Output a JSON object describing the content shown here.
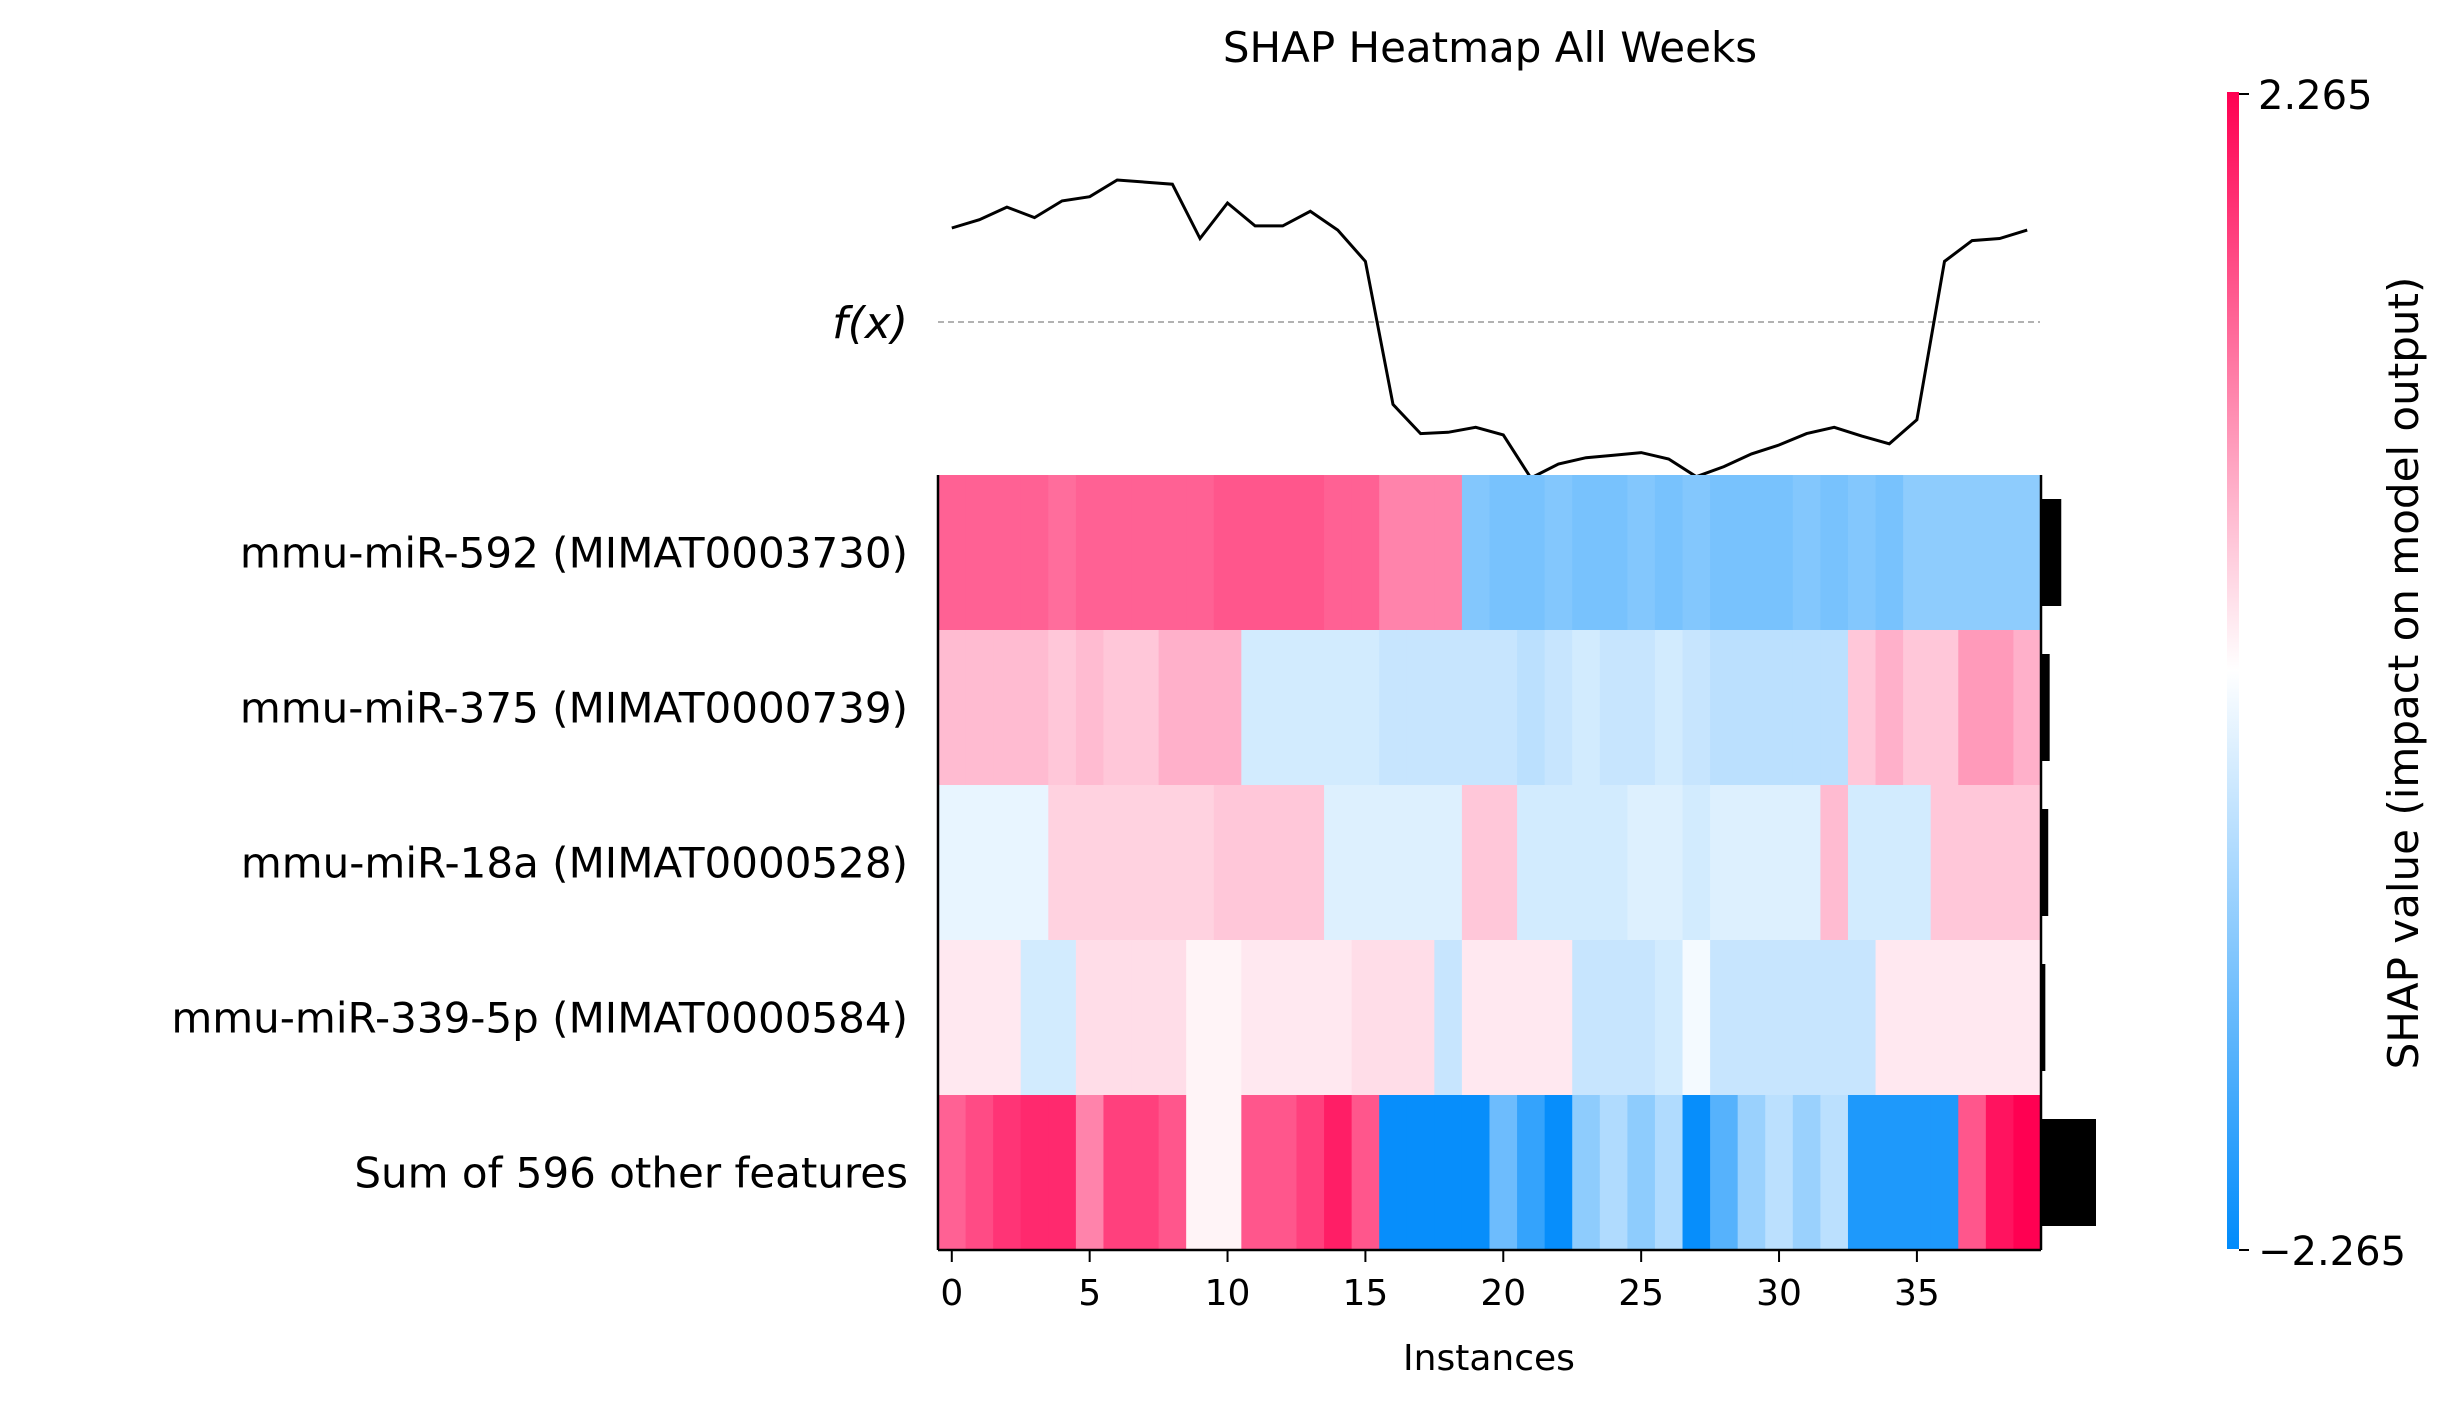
{
  "chart_data": {
    "type": "heatmap",
    "title": "SHAP Heatmap All Weeks",
    "xlabel": "Instances",
    "fx_label": "f(x)",
    "x_ticks": [
      0,
      5,
      10,
      15,
      20,
      25,
      30,
      35
    ],
    "n_instances": 40,
    "features": [
      "mmu-miR-592 (MIMAT0003730)",
      "mmu-miR-375 (MIMAT0000739)",
      "mmu-miR-18a (MIMAT0000528)",
      "mmu-miR-339-5p (MIMAT0000584)",
      "Sum of 596 other features"
    ],
    "shap_values": [
      [
        1.4,
        1.4,
        1.4,
        1.4,
        1.3,
        1.4,
        1.4,
        1.4,
        1.4,
        1.4,
        1.5,
        1.5,
        1.5,
        1.5,
        1.4,
        1.4,
        1.1,
        1.1,
        1.1,
        -1.1,
        -1.2,
        -1.2,
        -1.1,
        -1.2,
        -1.2,
        -1.1,
        -1.2,
        -1.1,
        -1.2,
        -1.2,
        -1.2,
        -1.1,
        -1.2,
        -1.1,
        -1.2,
        -1.0,
        -1.0,
        -1.0,
        -1.0,
        -1.0
      ],
      [
        0.6,
        0.6,
        0.6,
        0.6,
        0.5,
        0.6,
        0.5,
        0.5,
        0.7,
        0.7,
        0.7,
        -0.4,
        -0.4,
        -0.4,
        -0.4,
        -0.4,
        -0.5,
        -0.5,
        -0.5,
        -0.5,
        -0.5,
        -0.6,
        -0.5,
        -0.4,
        -0.5,
        -0.5,
        -0.4,
        -0.5,
        -0.6,
        -0.6,
        -0.6,
        -0.6,
        -0.6,
        0.5,
        0.7,
        0.5,
        0.5,
        0.9,
        0.9,
        0.7
      ],
      [
        -0.2,
        -0.2,
        -0.2,
        -0.2,
        0.4,
        0.4,
        0.4,
        0.4,
        0.4,
        0.4,
        0.5,
        0.5,
        0.5,
        0.5,
        -0.3,
        -0.3,
        -0.3,
        -0.3,
        -0.3,
        0.5,
        0.5,
        -0.4,
        -0.4,
        -0.4,
        -0.4,
        -0.3,
        -0.3,
        -0.4,
        -0.3,
        -0.3,
        -0.3,
        -0.3,
        0.6,
        -0.4,
        -0.4,
        -0.4,
        0.5,
        0.5,
        0.5,
        0.5
      ],
      [
        0.2,
        0.2,
        0.2,
        -0.4,
        -0.4,
        0.3,
        0.3,
        0.3,
        0.3,
        0.1,
        0.1,
        0.2,
        0.2,
        0.2,
        0.2,
        0.3,
        0.3,
        0.3,
        -0.5,
        0.2,
        0.2,
        0.2,
        0.2,
        -0.5,
        -0.5,
        -0.5,
        -0.4,
        -0.1,
        -0.5,
        -0.5,
        -0.5,
        -0.5,
        -0.5,
        -0.5,
        0.2,
        0.2,
        0.2,
        0.2,
        0.2,
        0.2
      ],
      [
        1.4,
        1.6,
        1.8,
        1.9,
        1.9,
        1.1,
        1.7,
        1.7,
        1.5,
        0.1,
        0.1,
        1.5,
        1.5,
        1.7,
        2.0,
        1.5,
        -2.2,
        -2.2,
        -2.2,
        -2.2,
        -1.3,
        -1.8,
        -2.2,
        -1.0,
        -0.7,
        -1.0,
        -0.7,
        -2.2,
        -1.5,
        -0.9,
        -0.6,
        -0.9,
        -0.6,
        -2.0,
        -2.0,
        -2.0,
        -2.0,
        1.5,
        2.1,
        2.265
      ]
    ],
    "fx_values": [
      0.45,
      0.49,
      0.55,
      0.5,
      0.58,
      0.6,
      0.68,
      0.67,
      0.66,
      0.4,
      0.57,
      0.46,
      0.46,
      0.53,
      0.44,
      0.29,
      -0.65,
      -0.88,
      -0.87,
      -0.83,
      -0.89,
      -1.23,
      -1.12,
      -1.07,
      -1.05,
      -1.03,
      -1.08,
      -1.22,
      -1.14,
      -1.04,
      -0.97,
      -0.88,
      -0.83,
      -0.9,
      -0.96,
      -0.77,
      0.29,
      0.39,
      0.4,
      0.44
    ],
    "feature_importance": [
      0.7,
      0.3,
      0.25,
      0.15,
      1.9
    ],
    "colorbar": {
      "label": "SHAP value (impact on model output)",
      "max_label": "2.265",
      "min_label": "−2.265",
      "vmin": -2.265,
      "vmax": 2.265,
      "color_low": "#008bfb",
      "color_mid": "#ffffff",
      "color_high": "#ff0052"
    }
  }
}
